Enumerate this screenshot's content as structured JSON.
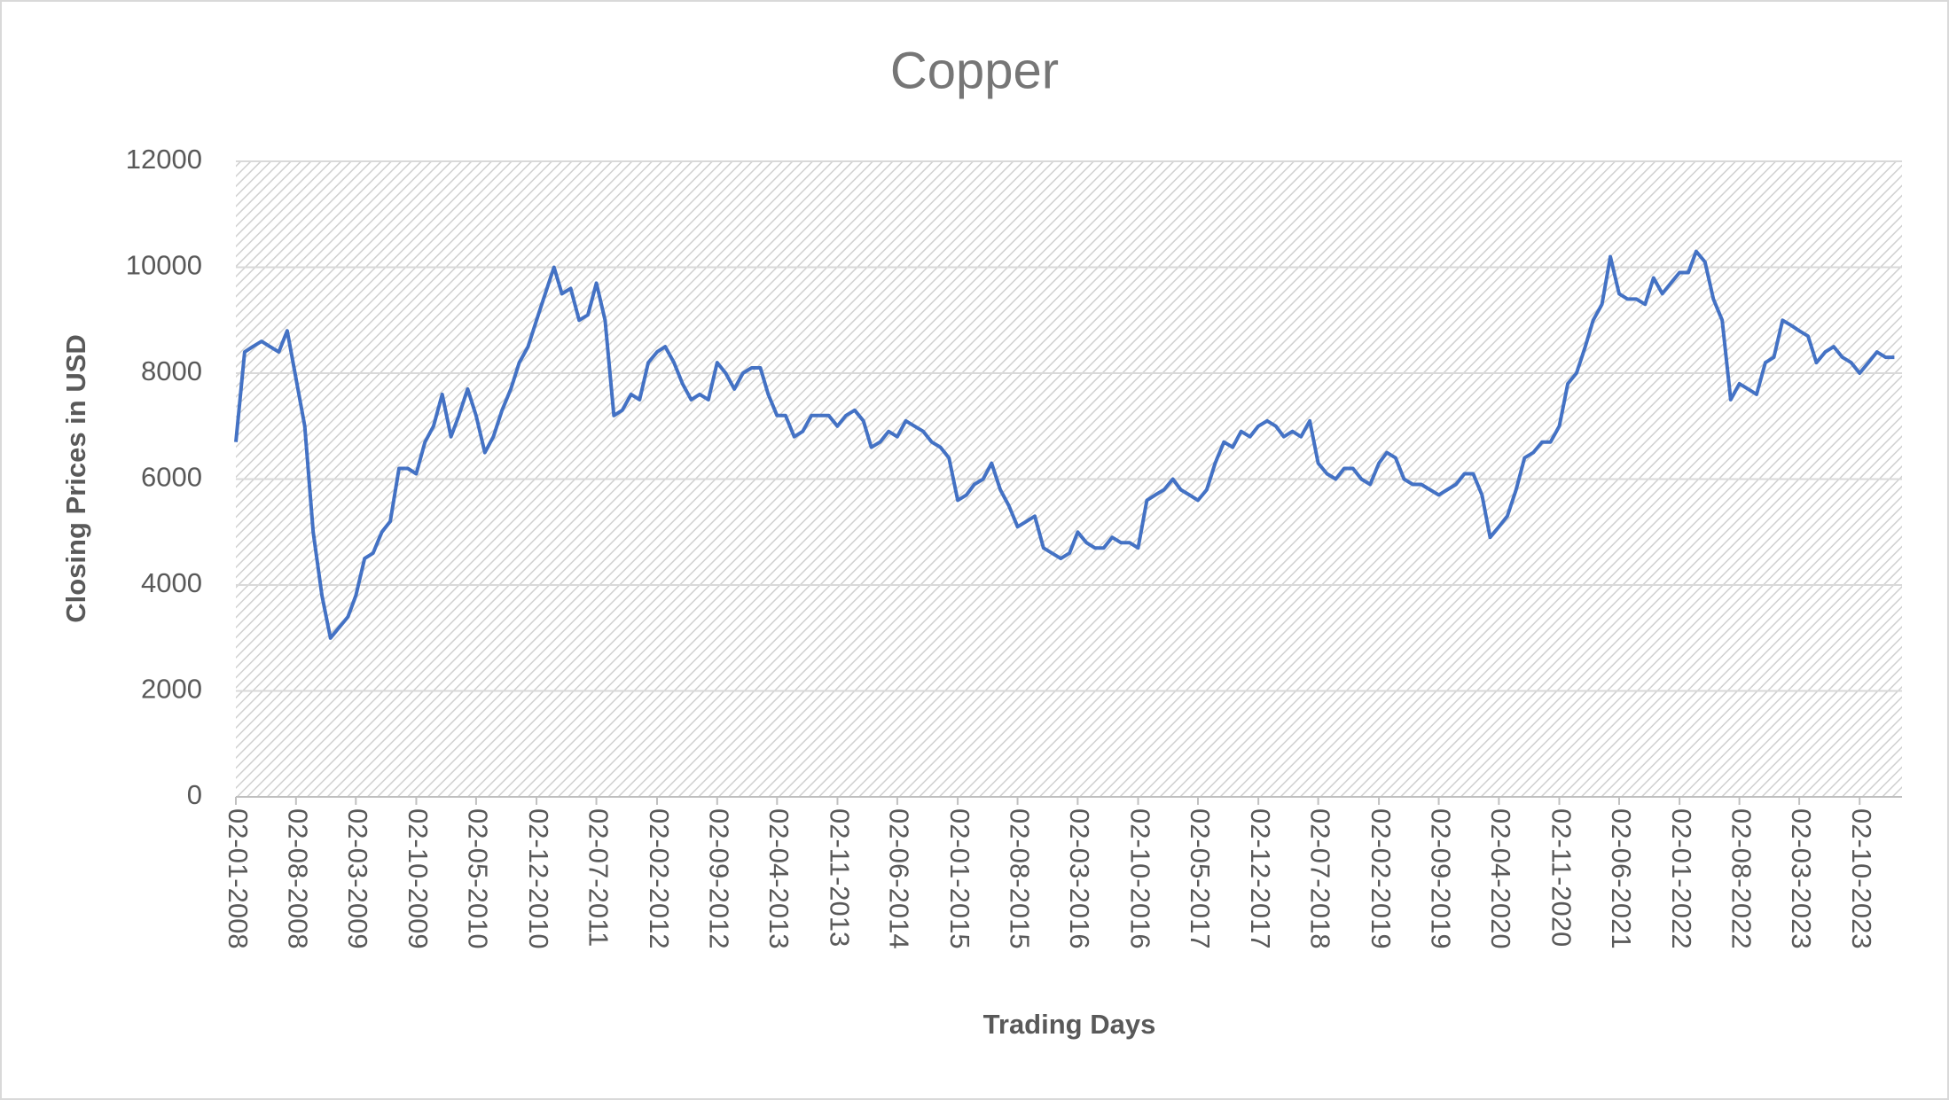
{
  "chart_data": {
    "type": "line",
    "title": "Copper",
    "x_label": "Trading Days",
    "y_label": "Closing Prices in USD",
    "color": "#4472c4",
    "grid": true,
    "ylim": [
      0,
      12000
    ],
    "yticks": [
      0,
      2000,
      4000,
      6000,
      8000,
      10000,
      12000
    ],
    "xlim": [
      "02-01-2008",
      "29-02-2024"
    ],
    "xticks": [
      "02-01-2008",
      "02-08-2008",
      "02-03-2009",
      "02-10-2009",
      "02-05-2010",
      "02-12-2010",
      "02-07-2011",
      "02-02-2012",
      "02-09-2012",
      "02-04-2013",
      "02-11-2013",
      "02-06-2014",
      "02-01-2015",
      "02-08-2015",
      "02-03-2016",
      "02-10-2016",
      "02-05-2017",
      "02-12-2017",
      "02-07-2018",
      "02-02-2019",
      "02-09-2019",
      "02-04-2020",
      "02-11-2020",
      "02-06-2021",
      "02-01-2022",
      "02-08-2022",
      "02-03-2023",
      "02-10-2023"
    ],
    "x": [
      "02-01-2008",
      "02-02-2008",
      "02-03-2008",
      "02-04-2008",
      "02-05-2008",
      "02-06-2008",
      "02-07-2008",
      "02-08-2008",
      "02-09-2008",
      "02-10-2008",
      "02-11-2008",
      "02-12-2008",
      "02-01-2009",
      "02-02-2009",
      "02-03-2009",
      "02-04-2009",
      "02-05-2009",
      "02-06-2009",
      "02-07-2009",
      "02-08-2009",
      "02-09-2009",
      "02-10-2009",
      "02-11-2009",
      "02-12-2009",
      "02-01-2010",
      "02-02-2010",
      "02-03-2010",
      "02-04-2010",
      "02-05-2010",
      "02-06-2010",
      "02-07-2010",
      "02-08-2010",
      "02-09-2010",
      "02-10-2010",
      "02-11-2010",
      "02-12-2010",
      "02-01-2011",
      "02-02-2011",
      "02-03-2011",
      "02-04-2011",
      "02-05-2011",
      "02-06-2011",
      "02-07-2011",
      "02-08-2011",
      "02-09-2011",
      "02-10-2011",
      "02-11-2011",
      "02-12-2011",
      "02-01-2012",
      "02-02-2012",
      "02-03-2012",
      "02-04-2012",
      "02-05-2012",
      "02-06-2012",
      "02-07-2012",
      "02-08-2012",
      "02-09-2012",
      "02-10-2012",
      "02-11-2012",
      "02-12-2012",
      "02-01-2013",
      "02-02-2013",
      "02-03-2013",
      "02-04-2013",
      "02-05-2013",
      "02-06-2013",
      "02-07-2013",
      "02-08-2013",
      "02-09-2013",
      "02-10-2013",
      "02-11-2013",
      "02-12-2013",
      "02-01-2014",
      "02-02-2014",
      "02-03-2014",
      "02-04-2014",
      "02-05-2014",
      "02-06-2014",
      "02-07-2014",
      "02-08-2014",
      "02-09-2014",
      "02-10-2014",
      "02-11-2014",
      "02-12-2014",
      "02-01-2015",
      "02-02-2015",
      "02-03-2015",
      "02-04-2015",
      "02-05-2015",
      "02-06-2015",
      "02-07-2015",
      "02-08-2015",
      "02-09-2015",
      "02-10-2015",
      "02-11-2015",
      "02-12-2015",
      "02-01-2016",
      "02-02-2016",
      "02-03-2016",
      "02-04-2016",
      "02-05-2016",
      "02-06-2016",
      "02-07-2016",
      "02-08-2016",
      "02-09-2016",
      "02-10-2016",
      "02-11-2016",
      "02-12-2016",
      "02-01-2017",
      "02-02-2017",
      "02-03-2017",
      "02-04-2017",
      "02-05-2017",
      "02-06-2017",
      "02-07-2017",
      "02-08-2017",
      "02-09-2017",
      "02-10-2017",
      "02-11-2017",
      "02-12-2017",
      "02-01-2018",
      "02-02-2018",
      "02-03-2018",
      "02-04-2018",
      "02-05-2018",
      "02-06-2018",
      "02-07-2018",
      "02-08-2018",
      "02-09-2018",
      "02-10-2018",
      "02-11-2018",
      "02-12-2018",
      "02-01-2019",
      "02-02-2019",
      "02-03-2019",
      "02-04-2019",
      "02-05-2019",
      "02-06-2019",
      "02-07-2019",
      "02-08-2019",
      "02-09-2019",
      "02-10-2019",
      "02-11-2019",
      "02-12-2019",
      "02-01-2020",
      "02-02-2020",
      "02-03-2020",
      "02-04-2020",
      "02-05-2020",
      "02-06-2020",
      "02-07-2020",
      "02-08-2020",
      "02-09-2020",
      "02-10-2020",
      "02-11-2020",
      "02-12-2020",
      "02-01-2021",
      "02-02-2021",
      "02-03-2021",
      "02-04-2021",
      "02-05-2021",
      "02-06-2021",
      "02-07-2021",
      "02-08-2021",
      "02-09-2021",
      "02-10-2021",
      "02-11-2021",
      "02-12-2021",
      "02-01-2022",
      "02-02-2022",
      "02-03-2022",
      "02-04-2022",
      "02-05-2022",
      "02-06-2022",
      "02-07-2022",
      "02-08-2022",
      "02-09-2022",
      "02-10-2022",
      "02-11-2022",
      "02-12-2022",
      "02-01-2023",
      "02-02-2023",
      "02-03-2023",
      "02-04-2023",
      "02-05-2023",
      "02-06-2023",
      "02-07-2023",
      "02-08-2023",
      "02-09-2023",
      "02-10-2023",
      "02-11-2023",
      "02-12-2023",
      "02-01-2024",
      "02-02-2024"
    ],
    "values": [
      6700,
      8400,
      8500,
      8600,
      8500,
      8400,
      8800,
      7900,
      7000,
      5000,
      3800,
      3000,
      3200,
      3400,
      3800,
      4500,
      4600,
      5000,
      5200,
      6200,
      6200,
      6100,
      6700,
      7000,
      7600,
      6800,
      7200,
      7700,
      7200,
      6500,
      6800,
      7300,
      7700,
      8200,
      8500,
      9000,
      9500,
      10000,
      9500,
      9600,
      9000,
      9100,
      9700,
      9000,
      7200,
      7300,
      7600,
      7500,
      8200,
      8400,
      8500,
      8200,
      7800,
      7500,
      7600,
      7500,
      8200,
      8000,
      7700,
      8000,
      8100,
      8100,
      7600,
      7200,
      7200,
      6800,
      6900,
      7200,
      7200,
      7200,
      7000,
      7200,
      7300,
      7100,
      6600,
      6700,
      6900,
      6800,
      7100,
      7000,
      6900,
      6700,
      6600,
      6400,
      5600,
      5700,
      5900,
      6000,
      6300,
      5800,
      5500,
      5100,
      5200,
      5300,
      4700,
      4600,
      4500,
      4600,
      5000,
      4800,
      4700,
      4700,
      4900,
      4800,
      4800,
      4700,
      5600,
      5700,
      5800,
      6000,
      5800,
      5700,
      5600,
      5800,
      6300,
      6700,
      6600,
      6900,
      6800,
      7000,
      7100,
      7000,
      6800,
      6900,
      6800,
      7100,
      6300,
      6100,
      6000,
      6200,
      6200,
      6000,
      5900,
      6300,
      6500,
      6400,
      6000,
      5900,
      5900,
      5800,
      5700,
      5800,
      5900,
      6100,
      6100,
      5700,
      4900,
      5100,
      5300,
      5800,
      6400,
      6500,
      6700,
      6700,
      7000,
      7800,
      8000,
      8500,
      9000,
      9300,
      10200,
      9500,
      9400,
      9400,
      9300,
      9800,
      9500,
      9700,
      9900,
      9900,
      10300,
      10100,
      9400,
      9000,
      7500,
      7800,
      7700,
      7600,
      8200,
      8300,
      9000,
      8900,
      8800,
      8700,
      8200,
      8400,
      8500,
      8300,
      8200,
      8000,
      8200,
      8400,
      8300,
      8300
    ]
  }
}
